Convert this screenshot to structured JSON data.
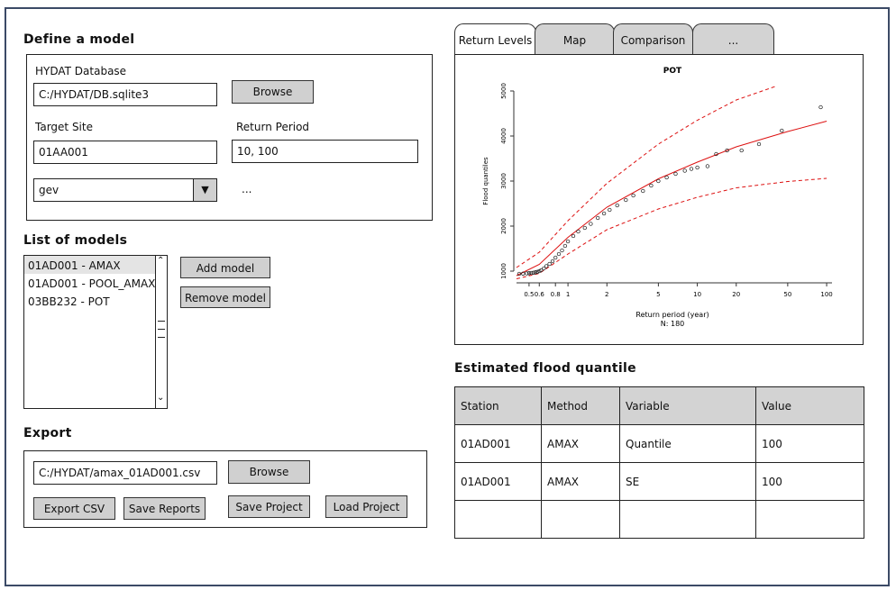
{
  "define_model": {
    "title": "Define a model",
    "hydat_label": "HYDAT Database",
    "hydat_value": "C:/HYDAT/DB.sqlite3",
    "browse_label": "Browse",
    "target_label": "Target Site",
    "target_value": "01AA001",
    "return_label": "Return Period",
    "return_value": "10, 100",
    "distribution_value": "gev",
    "more_label": "..."
  },
  "models": {
    "title": "List of models",
    "items": [
      "01AD001 - AMAX",
      "01AD001 - POOL_AMAX",
      "03BB232 - POT"
    ],
    "add_label": "Add model",
    "remove_label": "Remove model"
  },
  "export": {
    "title": "Export",
    "path_value": "C:/HYDAT/amax_01AD001.csv",
    "browse_label": "Browse",
    "export_csv_label": "Export CSV",
    "save_reports_label": "Save Reports",
    "save_project_label": "Save Project",
    "load_project_label": "Load Project"
  },
  "tabs": [
    "Return Levels",
    "Map",
    "Comparison",
    "..."
  ],
  "quantile": {
    "title": "Estimated flood quantile",
    "headers": [
      "Station",
      "Method",
      "Variable",
      "Value"
    ],
    "rows": [
      [
        "01AD001",
        "AMAX",
        "Quantile",
        "100"
      ],
      [
        "01AD001",
        "AMAX",
        "SE",
        "100"
      ],
      [
        "",
        "",
        "",
        ""
      ]
    ]
  },
  "chart_data": {
    "type": "scatter",
    "title": "POT",
    "xlabel": "Return period (year)",
    "sublabel": "N: 180",
    "ylabel": "Flood quantiles",
    "x_ticks": [
      "0.5",
      "0.6",
      "0.8",
      "1",
      "2",
      "5",
      "10",
      "20",
      "50",
      "100"
    ],
    "y_ticks": [
      "1000",
      "2000",
      "3000",
      "4000",
      "5000"
    ],
    "ylim": [
      800,
      5200
    ],
    "series": [
      {
        "type": "fit",
        "color": "#dd1111",
        "x": [
          0.4,
          0.6,
          1,
          2,
          5,
          10,
          20,
          50,
          100
        ],
        "y": [
          900,
          1150,
          1750,
          2420,
          3050,
          3420,
          3760,
          4100,
          4330
        ]
      },
      {
        "type": "upper",
        "color": "#dd1111",
        "x": [
          0.4,
          0.6,
          1,
          2,
          5,
          10,
          20,
          40
        ],
        "y": [
          1080,
          1420,
          2120,
          2950,
          3820,
          4350,
          4800,
          5100
        ]
      },
      {
        "type": "lower",
        "color": "#dd1111",
        "x": [
          0.4,
          0.6,
          1,
          2,
          5,
          10,
          20,
          50,
          100
        ],
        "y": [
          830,
          950,
          1380,
          1920,
          2380,
          2640,
          2850,
          2990,
          3060
        ]
      }
    ],
    "points": {
      "x": [
        0.42,
        0.45,
        0.48,
        0.5,
        0.52,
        0.54,
        0.56,
        0.58,
        0.6,
        0.62,
        0.65,
        0.68,
        0.72,
        0.76,
        0.8,
        0.85,
        0.9,
        0.95,
        1.0,
        1.1,
        1.2,
        1.35,
        1.5,
        1.7,
        1.9,
        2.1,
        2.4,
        2.8,
        3.2,
        3.8,
        4.4,
        5.0,
        5.8,
        6.8,
        8,
        9,
        10,
        12,
        14,
        17,
        22,
        30,
        45,
        90
      ],
      "y": [
        940,
        945,
        950,
        955,
        960,
        965,
        975,
        985,
        1000,
        1020,
        1060,
        1110,
        1160,
        1220,
        1300,
        1380,
        1460,
        1560,
        1660,
        1780,
        1880,
        1960,
        2050,
        2180,
        2280,
        2360,
        2460,
        2580,
        2680,
        2780,
        2900,
        3000,
        3080,
        3160,
        3230,
        3270,
        3300,
        3330,
        3600,
        3680,
        3680,
        3820,
        4120,
        4640
      ]
    }
  }
}
